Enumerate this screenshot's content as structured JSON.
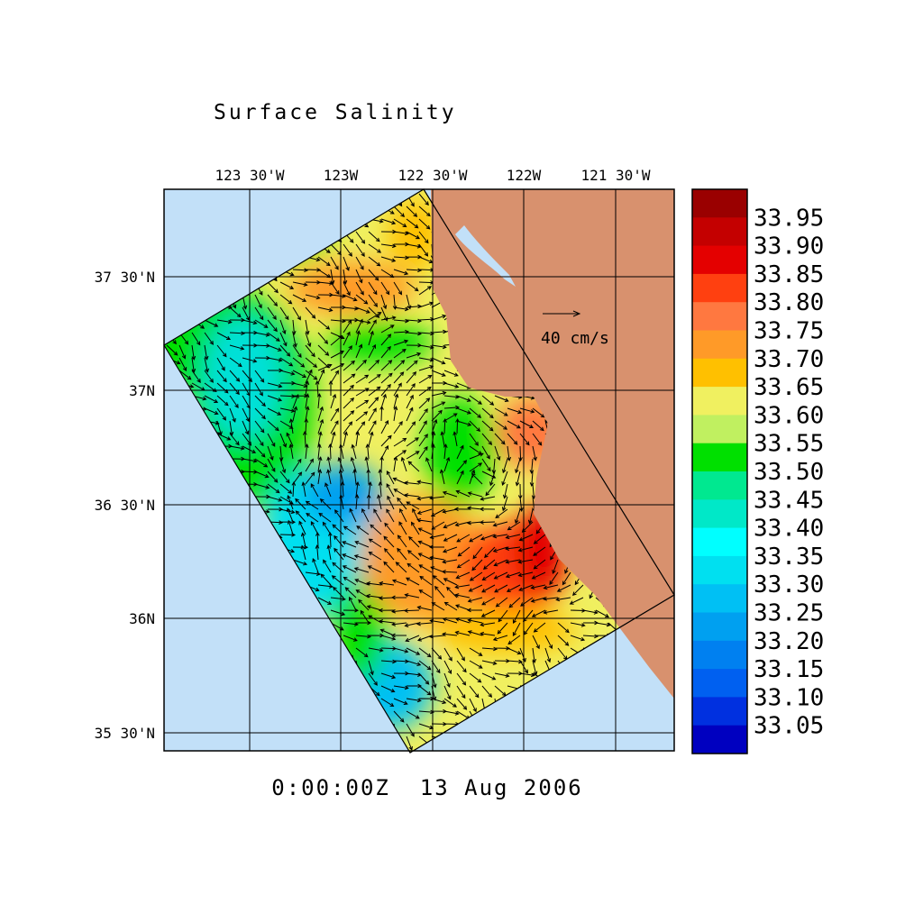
{
  "title": "Surface Salinity",
  "date": "0:00:00Z  13 Aug 2006",
  "scale_label": "40 cm/s",
  "lon_ticks": [
    "123 30'W",
    "123W",
    "122 30'W",
    "122W",
    "121 30'W"
  ],
  "lat_ticks": [
    "37 30'N",
    "37N",
    "36 30'N",
    "36N",
    "35 30'N"
  ],
  "colorbar": {
    "levels": [
      "33.95",
      "33.90",
      "33.85",
      "33.80",
      "33.75",
      "33.70",
      "33.65",
      "33.60",
      "33.55",
      "33.50",
      "33.45",
      "33.40",
      "33.35",
      "33.30",
      "33.25",
      "33.20",
      "33.15",
      "33.10",
      "33.05"
    ],
    "colors": [
      "#9a0000",
      "#c40000",
      "#e40000",
      "#ff4010",
      "#ff7840",
      "#ff9a28",
      "#ffc000",
      "#f0f060",
      "#c0f060",
      "#00e000",
      "#00e890",
      "#00e8c8",
      "#00ffff",
      "#00e0f0",
      "#00c0f4",
      "#00a0f0",
      "#0080f0",
      "#0060f0",
      "#0030e0",
      "#0000c0"
    ]
  }
}
